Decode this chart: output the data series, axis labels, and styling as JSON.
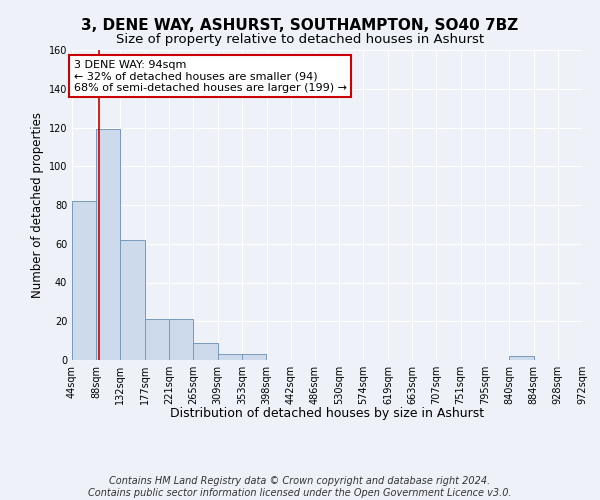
{
  "title": "3, DENE WAY, ASHURST, SOUTHAMPTON, SO40 7BZ",
  "subtitle": "Size of property relative to detached houses in Ashurst",
  "xlabel": "Distribution of detached houses by size in Ashurst",
  "ylabel": "Number of detached properties",
  "bin_edges": [
    44,
    88,
    132,
    177,
    221,
    265,
    309,
    353,
    398,
    442,
    486,
    530,
    574,
    619,
    663,
    707,
    751,
    795,
    840,
    884,
    928
  ],
  "bar_heights": [
    82,
    119,
    62,
    21,
    21,
    9,
    3,
    3,
    0,
    0,
    0,
    0,
    0,
    0,
    0,
    0,
    0,
    0,
    2,
    0,
    0
  ],
  "bar_color": "#ccdaeb",
  "bar_edge_color": "#7799bb",
  "property_size": 94,
  "property_line_color": "#cc0000",
  "annotation_line1": "3 DENE WAY: 94sqm",
  "annotation_line2": "← 32% of detached houses are smaller (94)",
  "annotation_line3": "68% of semi-detached houses are larger (199) →",
  "annotation_box_color": "#ffffff",
  "annotation_box_edge_color": "#cc0000",
  "ylim": [
    0,
    160
  ],
  "yticks": [
    0,
    20,
    40,
    60,
    80,
    100,
    120,
    140,
    160
  ],
  "bg_color": "#eef2f8",
  "grid_color": "#ffffff",
  "footer_text": "Contains HM Land Registry data © Crown copyright and database right 2024.\nContains public sector information licensed under the Open Government Licence v3.0.",
  "title_fontsize": 11,
  "subtitle_fontsize": 9.5,
  "annotation_fontsize": 8,
  "footer_fontsize": 7,
  "ylabel_fontsize": 8.5,
  "xlabel_fontsize": 9,
  "tick_fontsize": 7
}
